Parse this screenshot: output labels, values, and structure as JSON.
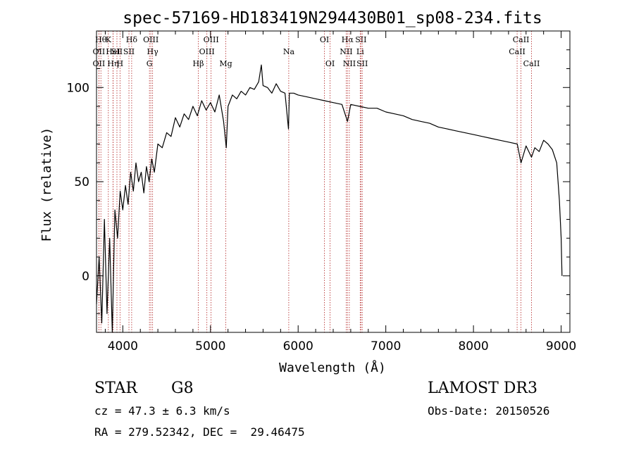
{
  "chart_data": {
    "type": "line",
    "title": "spec-57169-HD183419N294430B01_sp08-234.fits",
    "xlabel": "Wavelength (Å)",
    "ylabel": "Flux (relative)",
    "xlim": [
      3700,
      9100
    ],
    "ylim": [
      -30,
      130
    ],
    "xticks": [
      4000,
      5000,
      6000,
      7000,
      8000,
      9000
    ],
    "yticks": [
      0,
      50,
      100
    ],
    "series": [
      {
        "name": "flux",
        "x": [
          3700,
          3730,
          3760,
          3790,
          3820,
          3850,
          3880,
          3910,
          3940,
          3970,
          4000,
          4030,
          4060,
          4090,
          4120,
          4150,
          4180,
          4210,
          4240,
          4270,
          4300,
          4330,
          4360,
          4400,
          4450,
          4500,
          4550,
          4600,
          4650,
          4700,
          4750,
          4800,
          4850,
          4900,
          4950,
          5000,
          5050,
          5100,
          5150,
          5180,
          5200,
          5250,
          5300,
          5350,
          5400,
          5450,
          5500,
          5550,
          5580,
          5600,
          5650,
          5700,
          5750,
          5800,
          5850,
          5890,
          5900,
          5950,
          6000,
          6100,
          6200,
          6300,
          6400,
          6500,
          6563,
          6600,
          6700,
          6800,
          6900,
          7000,
          7100,
          7200,
          7300,
          7400,
          7500,
          7600,
          7700,
          7800,
          7900,
          8000,
          8100,
          8200,
          8300,
          8400,
          8500,
          8542,
          8600,
          8662,
          8700,
          8750,
          8800,
          8850,
          8900,
          8950,
          8980,
          9000,
          9010
        ],
        "values": [
          -15,
          10,
          -25,
          30,
          -20,
          20,
          -30,
          35,
          20,
          45,
          35,
          48,
          38,
          55,
          45,
          60,
          50,
          55,
          44,
          58,
          50,
          62,
          55,
          70,
          68,
          76,
          74,
          84,
          79,
          86,
          83,
          90,
          85,
          93,
          88,
          92,
          87,
          96,
          82,
          68,
          90,
          96,
          94,
          98,
          96,
          100,
          99,
          103,
          112,
          101,
          100,
          97,
          102,
          98,
          97,
          78,
          97,
          97,
          96,
          95,
          94,
          93,
          92,
          91,
          82,
          91,
          90,
          89,
          89,
          87,
          86,
          85,
          83,
          82,
          81,
          79,
          78,
          77,
          76,
          75,
          74,
          73,
          72,
          71,
          70,
          60,
          69,
          63,
          68,
          66,
          72,
          70,
          67,
          60,
          40,
          20,
          0
        ]
      }
    ],
    "lines": [
      {
        "x": 3750,
        "label": "Hθ",
        "row": 0
      },
      {
        "x": 3727,
        "label": "OII",
        "row": 1
      },
      {
        "x": 3727,
        "label": "OII",
        "row": 2
      },
      {
        "x": 3835,
        "label": "K",
        "row": 0
      },
      {
        "x": 3889,
        "label": "HeI",
        "row": 1
      },
      {
        "x": 3889,
        "label": "Hη",
        "row": 2
      },
      {
        "x": 3933,
        "label": "SII",
        "row": 1
      },
      {
        "x": 3968,
        "label": "H",
        "row": 2
      },
      {
        "x": 4101,
        "label": "Hδ",
        "row": 0
      },
      {
        "x": 4070,
        "label": "SII",
        "row": 1
      },
      {
        "x": 4320,
        "label": "OIII",
        "row": 0
      },
      {
        "x": 4340,
        "label": "Hγ",
        "row": 1
      },
      {
        "x": 4304,
        "label": "G",
        "row": 2
      },
      {
        "x": 5007,
        "label": "OIII",
        "row": 0
      },
      {
        "x": 4959,
        "label": "OIII",
        "row": 1
      },
      {
        "x": 4861,
        "label": "Hβ",
        "row": 2
      },
      {
        "x": 5175,
        "label": "Mg",
        "row": 2
      },
      {
        "x": 5893,
        "label": "Na",
        "row": 1
      },
      {
        "x": 6300,
        "label": "OI",
        "row": 0
      },
      {
        "x": 6364,
        "label": "OI",
        "row": 2
      },
      {
        "x": 6563,
        "label": "Hα",
        "row": 0
      },
      {
        "x": 6548,
        "label": "NII",
        "row": 1
      },
      {
        "x": 6584,
        "label": "NII",
        "row": 2
      },
      {
        "x": 6716,
        "label": "SII",
        "row": 0
      },
      {
        "x": 6708,
        "label": "Li",
        "row": 1
      },
      {
        "x": 6731,
        "label": "SII",
        "row": 2
      },
      {
        "x": 8542,
        "label": "CaII",
        "row": 0
      },
      {
        "x": 8498,
        "label": "CaII",
        "row": 1
      },
      {
        "x": 8662,
        "label": "CaII",
        "row": 2
      }
    ]
  },
  "info": {
    "object_class": "STAR",
    "subclass": "G8",
    "survey": "LAMOST DR3",
    "cz": "cz = 47.3 ± 6.3 km/s",
    "obs_date": "Obs-Date: 20150526",
    "coords": "RA = 279.52342, DEC =  29.46475"
  },
  "colors": {
    "spectrum": "#000000",
    "line_marker": "#b22222"
  }
}
